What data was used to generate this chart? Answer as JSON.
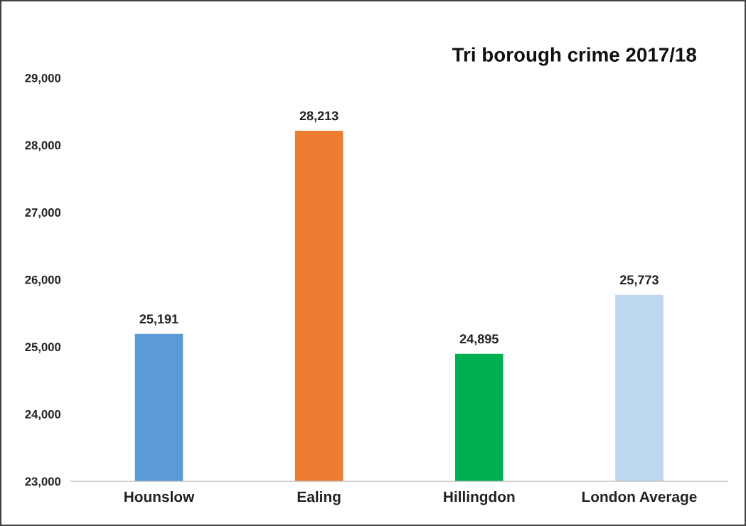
{
  "chart_data": {
    "type": "bar",
    "title": "Tri borough crime 2017/18",
    "categories": [
      "Hounslow",
      "Ealing",
      "Hillingdon",
      "London Average"
    ],
    "values": [
      25191,
      28213,
      24895,
      25773
    ],
    "colors": [
      "#5b9bd5",
      "#ed7d31",
      "#00b050",
      "#bdd7ee"
    ],
    "value_labels": [
      "25,191",
      "28,213",
      "24,895",
      "25,773"
    ],
    "ylim": [
      23000,
      29000
    ],
    "yticks": [
      {
        "value": 23000,
        "label": "23,000"
      },
      {
        "value": 24000,
        "label": "24,000"
      },
      {
        "value": 25000,
        "label": "25,000"
      },
      {
        "value": 26000,
        "label": "26,000"
      },
      {
        "value": 27000,
        "label": "27,000"
      },
      {
        "value": 28000,
        "label": "28,000"
      },
      {
        "value": 29000,
        "label": "29,000"
      }
    ],
    "grid": false,
    "legend": false
  }
}
